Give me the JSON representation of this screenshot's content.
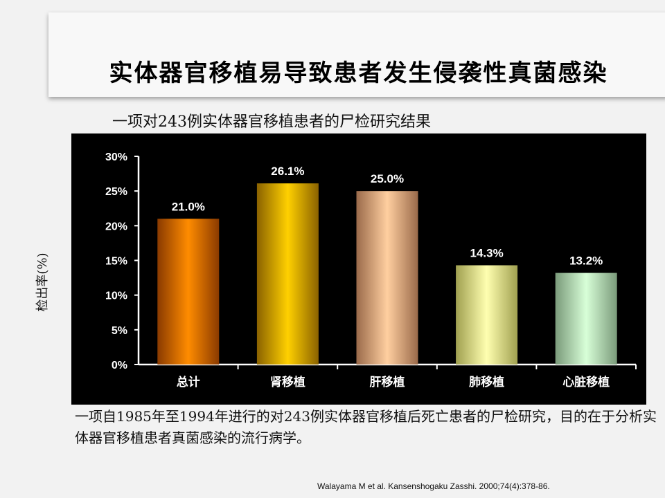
{
  "slide": {
    "title": "实体器官移植易导致患者发生侵袭性真菌感染",
    "subtitle": "一项对243例实体器官移植患者的尸检研究结果",
    "footnote": "一项自1985年至1994年进行的对243例实体器官移植后死亡患者的尸检研究，目的在于分析实体器官移植患者真菌感染的流行病学。",
    "citation": "Walayama M et al. Kansenshogaku Zasshi. 2000;74(4):378-86."
  },
  "chart_data": {
    "type": "bar",
    "title": "",
    "xlabel": "",
    "ylabel": "检出率(%)",
    "categories": [
      "总计",
      "肾移植",
      "肝移植",
      "肺移植",
      "心脏移植"
    ],
    "values": [
      21.0,
      26.1,
      25.0,
      14.3,
      13.2
    ],
    "value_labels": [
      "21.0%",
      "26.1%",
      "25.0%",
      "14.3%",
      "13.2%"
    ],
    "ylim": [
      0,
      30
    ],
    "yticks": [
      0,
      5,
      10,
      15,
      20,
      25,
      30
    ],
    "ytick_labels": [
      "0%",
      "5%",
      "10%",
      "15%",
      "20%",
      "25%",
      "30%"
    ],
    "grid": false,
    "legend": "none",
    "background": "#000000",
    "bar_colors": [
      [
        "#8a3a00",
        "#ff8c00",
        "#8a3a00"
      ],
      [
        "#8a6200",
        "#ffd000",
        "#8a6200"
      ],
      [
        "#9a6a4a",
        "#ffcfa0",
        "#9a6a4a"
      ],
      [
        "#a0a050",
        "#ffffb0",
        "#a0a050"
      ],
      [
        "#7a9a7a",
        "#d8ffd8",
        "#7a9a7a"
      ]
    ]
  }
}
